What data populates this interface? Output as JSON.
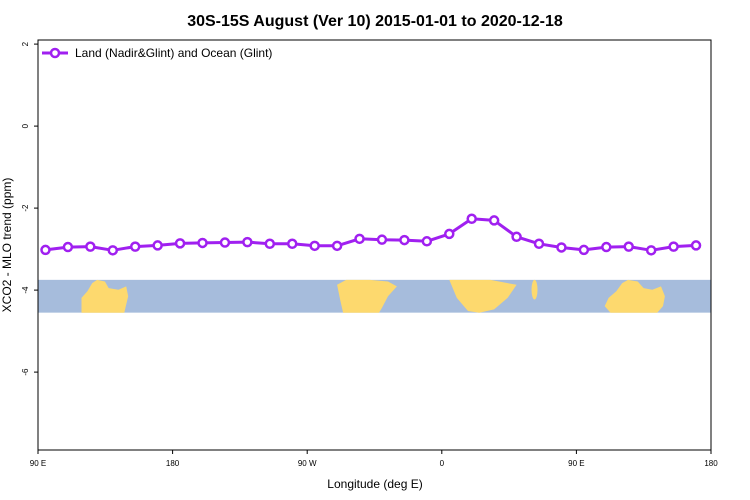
{
  "chart_data": {
    "type": "line",
    "title": "30S-15S August (Ver 10)   2015-01-01 to 2020-12-18",
    "xlabel": "Longitude (deg E)",
    "ylabel": "XCO2 - MLO trend (ppm)",
    "x_ticks": [
      "90 E",
      "180",
      "90 W",
      "0",
      "90 E",
      "180"
    ],
    "y_ticks": [
      "2",
      "0",
      "-2",
      "-4",
      "-6"
    ],
    "y_tick_values": [
      2,
      0,
      -2,
      -4,
      -6
    ],
    "ylim": [
      -7.9,
      2.1
    ],
    "grid": false,
    "legend_position": "top-left",
    "series": [
      {
        "name": "Land (Nadir&Glint) and Ocean (Glint)",
        "color": "#a020f0",
        "x": [
          95,
          110,
          125,
          140,
          155,
          170,
          185,
          200,
          215,
          230,
          245,
          260,
          275,
          290,
          305,
          320,
          335,
          350,
          365,
          380,
          395,
          410,
          425,
          440,
          455,
          470,
          485,
          500,
          515,
          530
        ],
        "y": [
          -3.02,
          -2.95,
          -2.94,
          -3.03,
          -2.94,
          -2.91,
          -2.86,
          -2.85,
          -2.84,
          -2.83,
          -2.87,
          -2.87,
          -2.92,
          -2.92,
          -2.75,
          -2.77,
          -2.78,
          -2.81,
          -2.63,
          -2.26,
          -2.3,
          -2.7,
          -2.87,
          -2.96,
          -3.02,
          -2.95,
          -2.94,
          -3.03,
          -2.94,
          -2.91
        ]
      }
    ],
    "map_strip": {
      "y_range": [
        -3.75,
        -4.55
      ],
      "ocean_color": "#a6bcdc",
      "land_color": "#fdd96e"
    }
  }
}
